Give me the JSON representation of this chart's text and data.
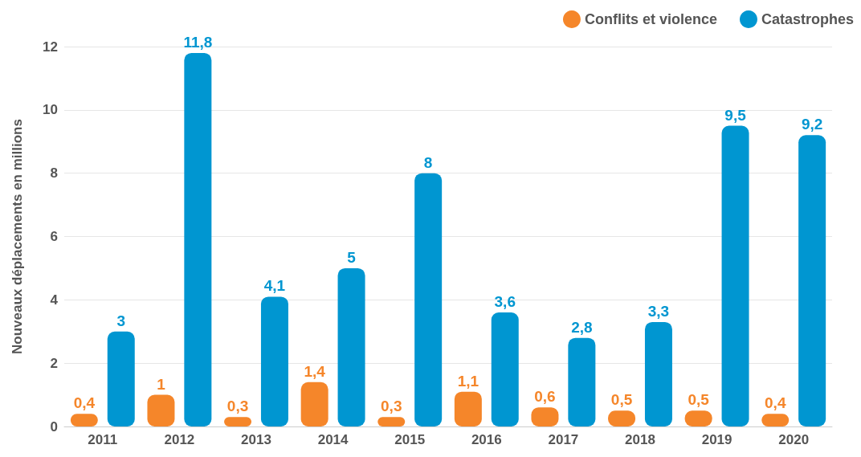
{
  "chart_data": {
    "type": "bar",
    "ylabel": "Nouveaux déplacements en millions",
    "categories": [
      "2011",
      "2012",
      "2013",
      "2014",
      "2015",
      "2016",
      "2017",
      "2018",
      "2019",
      "2020"
    ],
    "series": [
      {
        "name": "Conflits et violence",
        "color": "#f5862a",
        "values": [
          0.4,
          1,
          0.3,
          1.4,
          0.3,
          1.1,
          0.6,
          0.5,
          0.5,
          0.4
        ],
        "value_labels": [
          "0,4",
          "1",
          "0,3",
          "1,4",
          "0,3",
          "1,1",
          "0,6",
          "0,5",
          "0,5",
          "0,4"
        ]
      },
      {
        "name": "Catastrophes",
        "color": "#0096d1",
        "values": [
          3,
          11.8,
          4.1,
          5,
          8,
          3.6,
          2.8,
          3.3,
          9.5,
          9.2
        ],
        "value_labels": [
          "3",
          "11,8",
          "4,1",
          "5",
          "8",
          "3,6",
          "2,8",
          "3,3",
          "9,5",
          "9,2"
        ]
      }
    ],
    "ylim": [
      0,
      12
    ],
    "yticks": [
      0,
      2,
      4,
      6,
      8,
      10,
      12
    ],
    "grid": "y",
    "legend": "top right"
  }
}
